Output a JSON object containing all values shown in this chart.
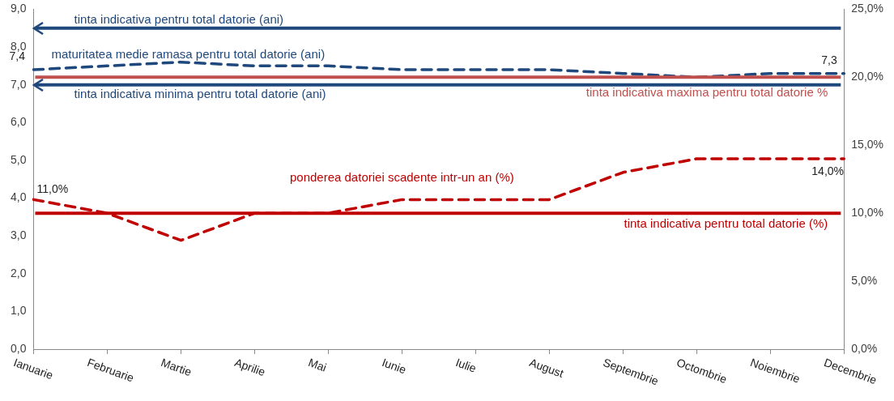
{
  "chart_data": {
    "type": "line",
    "categories": [
      "Ianuarie",
      "Februarie",
      "Martie",
      "Aprilie",
      "Mai",
      "Iunie",
      "Iulie",
      "August",
      "Septembrie",
      "Octombrie",
      "Noiembrie",
      "Decembrie"
    ],
    "series": [
      {
        "name": "maturitatea medie ramasa pentru total datorie (ani)",
        "color": "#1f497d",
        "values": [
          7.4,
          7.5,
          7.6,
          7.5,
          7.5,
          7.4,
          7.4,
          7.4,
          7.3,
          7.2,
          7.3,
          7.3
        ],
        "value_labels": [
          "7,4",
          null,
          null,
          null,
          null,
          null,
          null,
          null,
          null,
          null,
          null,
          "7,3"
        ]
      },
      {
        "name": "ponderea datoriei scadente intr-un an (%)",
        "color": "#c00000",
        "axis": "y2",
        "values": [
          11,
          10,
          8,
          10,
          10,
          11,
          11,
          11,
          13,
          14,
          14,
          14
        ],
        "value_labels": [
          "11,0%",
          null,
          null,
          null,
          null,
          null,
          null,
          null,
          null,
          null,
          null,
          "14,0%"
        ]
      }
    ],
    "ylim": [
      0,
      9
    ],
    "yticks": [
      {
        "value": 0,
        "label": "0,0"
      },
      {
        "value": 1,
        "label": "1,0"
      },
      {
        "value": 2,
        "label": "2,0"
      },
      {
        "value": 3,
        "label": "3,0"
      },
      {
        "value": 4,
        "label": "4,0"
      },
      {
        "value": 5,
        "label": "5,0"
      },
      {
        "value": 6,
        "label": "6,0"
      },
      {
        "value": 7,
        "label": "7,0"
      },
      {
        "value": 8,
        "label": "8,0"
      },
      {
        "value": 9,
        "label": "9,0"
      }
    ],
    "y2lim": [
      0,
      25
    ],
    "y2ticks": [
      {
        "value": 0,
        "label": "0,0%"
      },
      {
        "value": 5,
        "label": "5,0%"
      },
      {
        "value": 10,
        "label": "10,0%"
      },
      {
        "value": 15,
        "label": "15,0%"
      },
      {
        "value": 20,
        "label": "20,0%"
      },
      {
        "value": 25,
        "label": "25,0%"
      }
    ],
    "ref_lines": [
      {
        "axis": "y",
        "value": 8.5,
        "label": "tinta indicativa pentru total datorie (ani)",
        "color": "#1f497d"
      },
      {
        "axis": "y",
        "value": 7.0,
        "label": "tinta indicativa minima pentru total datorie (ani)",
        "color": "#1f497d"
      },
      {
        "axis": "y2",
        "value": 20,
        "label": "tinta indicativa maxima pentru total datorie %",
        "color": "#c0504d"
      },
      {
        "axis": "y2",
        "value": 10,
        "label": "tinta indicativa pentru total datorie (%)",
        "color": "#c00000"
      }
    ],
    "line_style": "dashed",
    "marker": "none",
    "grid": false,
    "legend": false
  }
}
